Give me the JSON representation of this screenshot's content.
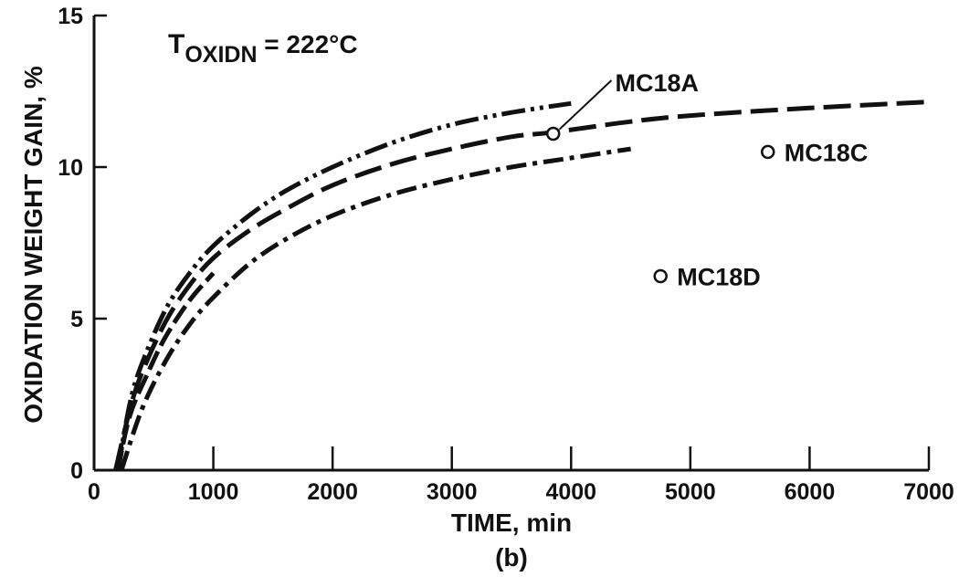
{
  "chart_data": {
    "type": "line",
    "title_main": "T",
    "title_sub": "OXIDN",
    "title_rest": " = 222°C",
    "xlabel": "TIME, min",
    "ylabel": "OXIDATION WEIGHT GAIN, %",
    "caption": "(b)",
    "xlim": [
      0,
      7000
    ],
    "ylim": [
      0,
      15
    ],
    "x_ticks": [
      0,
      1000,
      2000,
      3000,
      4000,
      5000,
      6000,
      7000
    ],
    "x_tick_labels": [
      "0",
      "1000",
      "2000",
      "3000",
      "4000",
      "5000",
      "6000",
      "7000"
    ],
    "y_ticks": [
      0,
      5,
      10,
      15
    ],
    "y_tick_labels": [
      "0",
      "5",
      "10",
      "15"
    ],
    "grid": false,
    "series": [
      {
        "style": "dash-dot-dot",
        "x": [
          200,
          300,
          400,
          600,
          800,
          1000,
          1300,
          1600,
          2000,
          2500,
          3000,
          3500,
          4000
        ],
        "y": [
          0,
          2.2,
          3.5,
          5.3,
          6.5,
          7.4,
          8.4,
          9.2,
          10.0,
          10.8,
          11.4,
          11.8,
          12.1
        ]
      },
      {
        "style": "long-dash",
        "x": [
          180,
          300,
          400,
          600,
          800,
          1000,
          1300,
          1600,
          2000,
          2500,
          3000,
          3500,
          3850,
          4500,
          5000,
          6000,
          7000
        ],
        "y": [
          0,
          2.0,
          3.2,
          4.9,
          6.1,
          7.0,
          7.9,
          8.6,
          9.4,
          10.1,
          10.6,
          11.0,
          11.15,
          11.5,
          11.7,
          11.95,
          12.15
        ]
      },
      {
        "style": "long-dash-short",
        "x": [
          200,
          300,
          450,
          600,
          800,
          1000
        ],
        "y": [
          0,
          1.8,
          3.2,
          4.4,
          5.6,
          6.5
        ]
      },
      {
        "style": "dash-dot",
        "x": [
          230,
          400,
          600,
          800,
          1000,
          1300,
          1600,
          2000,
          2500,
          3000,
          3500,
          4000,
          4500
        ],
        "y": [
          0,
          2.0,
          3.6,
          4.8,
          5.7,
          6.8,
          7.6,
          8.4,
          9.1,
          9.6,
          10.0,
          10.3,
          10.6
        ]
      }
    ],
    "markers": [
      {
        "label": "MC18A",
        "x": 3850,
        "y": 11.1,
        "label_x": 4400,
        "label_y": 12.8
      },
      {
        "label": "MC18C",
        "x": 5650,
        "y": 10.5
      },
      {
        "label": "MC18D",
        "x": 4750,
        "y": 6.4
      }
    ]
  }
}
